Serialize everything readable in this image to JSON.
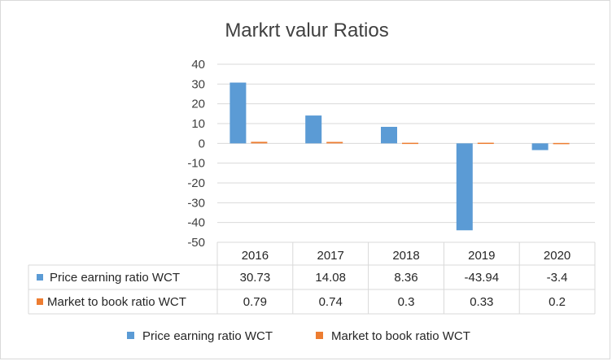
{
  "chart_data": {
    "type": "bar",
    "title": "Markrt valur Ratios",
    "categories": [
      "2016",
      "2017",
      "2018",
      "2019",
      "2020"
    ],
    "series": [
      {
        "name": "Price earning ratio WCT",
        "values": [
          30.73,
          14.08,
          8.36,
          -43.94,
          -3.4
        ],
        "labels": [
          "30.73",
          "14.08",
          "8.36",
          "-43.94",
          "-3.4"
        ],
        "color": "#5b9bd5"
      },
      {
        "name": "Market to book ratio  WCT",
        "values": [
          0.79,
          0.74,
          0.3,
          0.33,
          0.2
        ],
        "labels": [
          "0.79",
          "0.74",
          "0.3",
          "0.33",
          "0.2"
        ],
        "color": "#ed7d31"
      }
    ],
    "ylim": [
      -50,
      40
    ],
    "yticks": [
      40,
      30,
      20,
      10,
      0,
      -10,
      -20,
      -30,
      -40,
      -50
    ],
    "grid": true,
    "data_table": true,
    "legend_position": "bottom"
  }
}
